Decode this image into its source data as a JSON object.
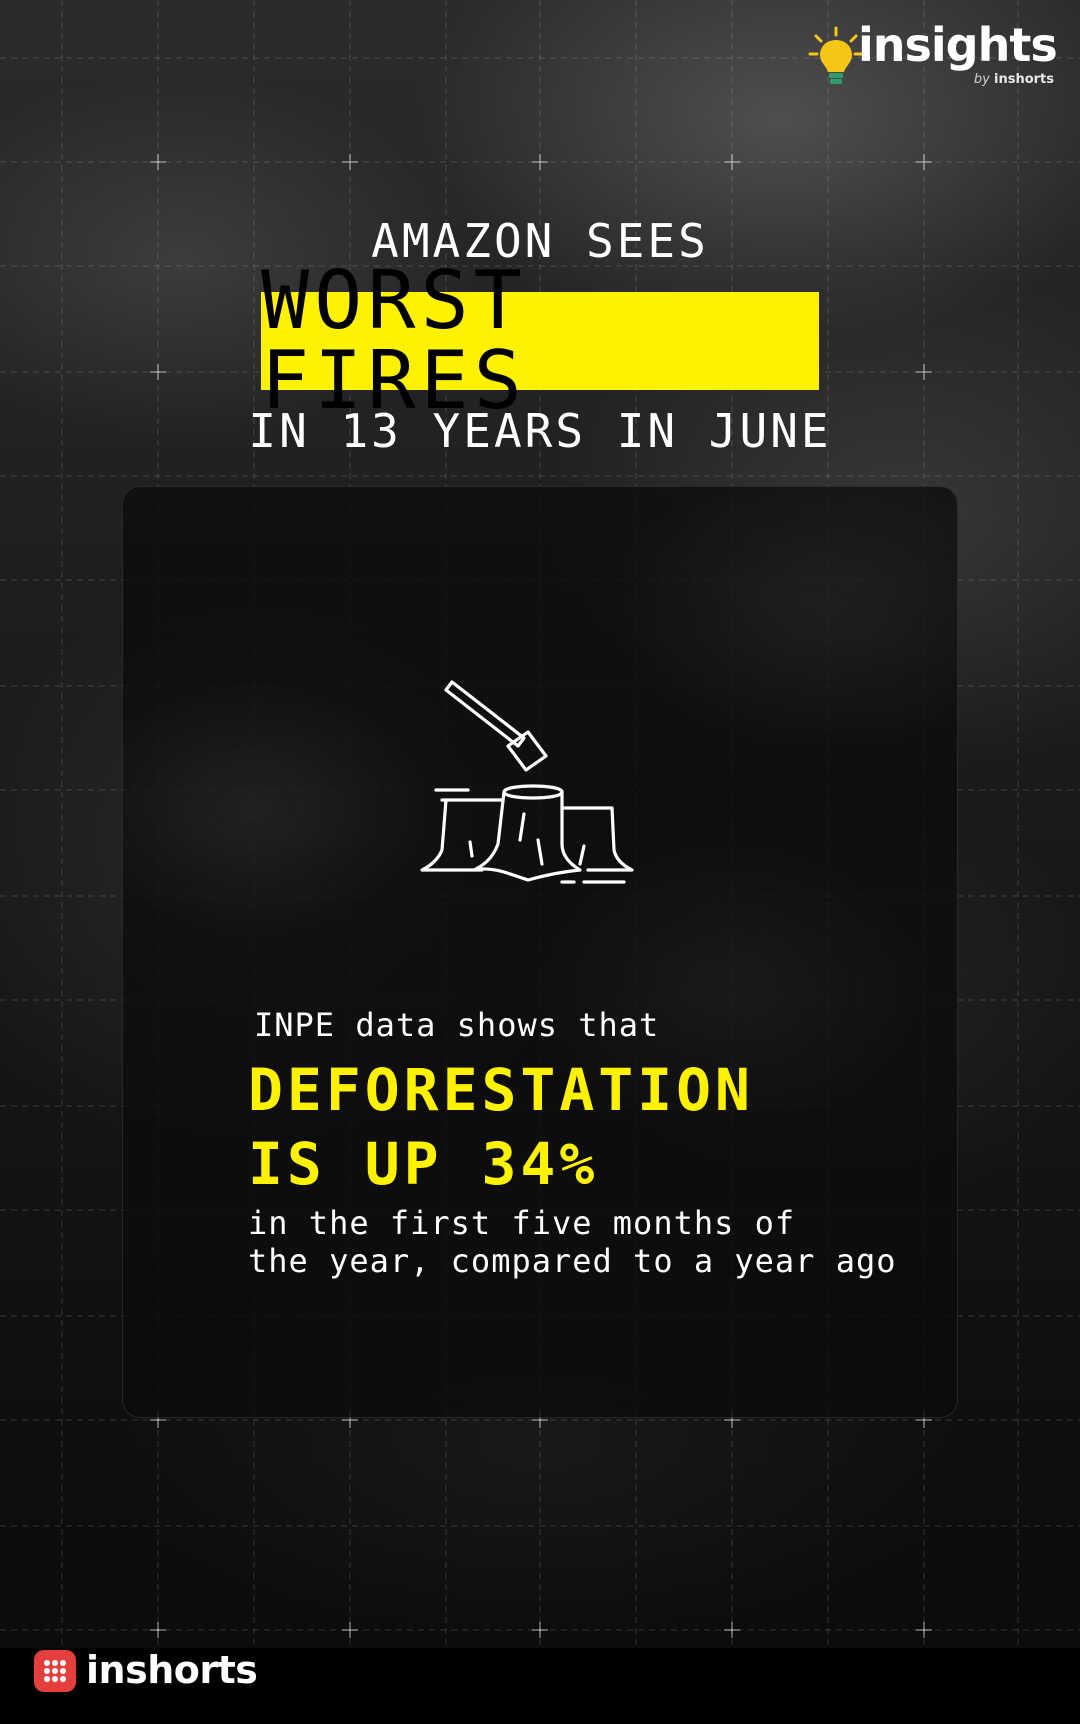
{
  "brand": {
    "insights_name": "insights",
    "insights_byline_prefix": "by",
    "insights_byline_brand": "inshorts",
    "inshorts_name": "inshorts"
  },
  "headline": {
    "line1": "AMAZON SEES",
    "highlight": "WORST FIRES",
    "line3": "IN 13 YEARS IN JUNE"
  },
  "card": {
    "icon": "tree-stump-axe-icon",
    "intro": "INPE data shows that",
    "stat_line1": "DEFORESTATION",
    "stat_line2": "IS UP 34%",
    "detail_line1": "in the first five months of",
    "detail_line2": "the year, compared to a year ago"
  },
  "colors": {
    "accent_yellow": "#fff200",
    "brand_red": "#e53e3e",
    "text_white": "#ffffff"
  }
}
